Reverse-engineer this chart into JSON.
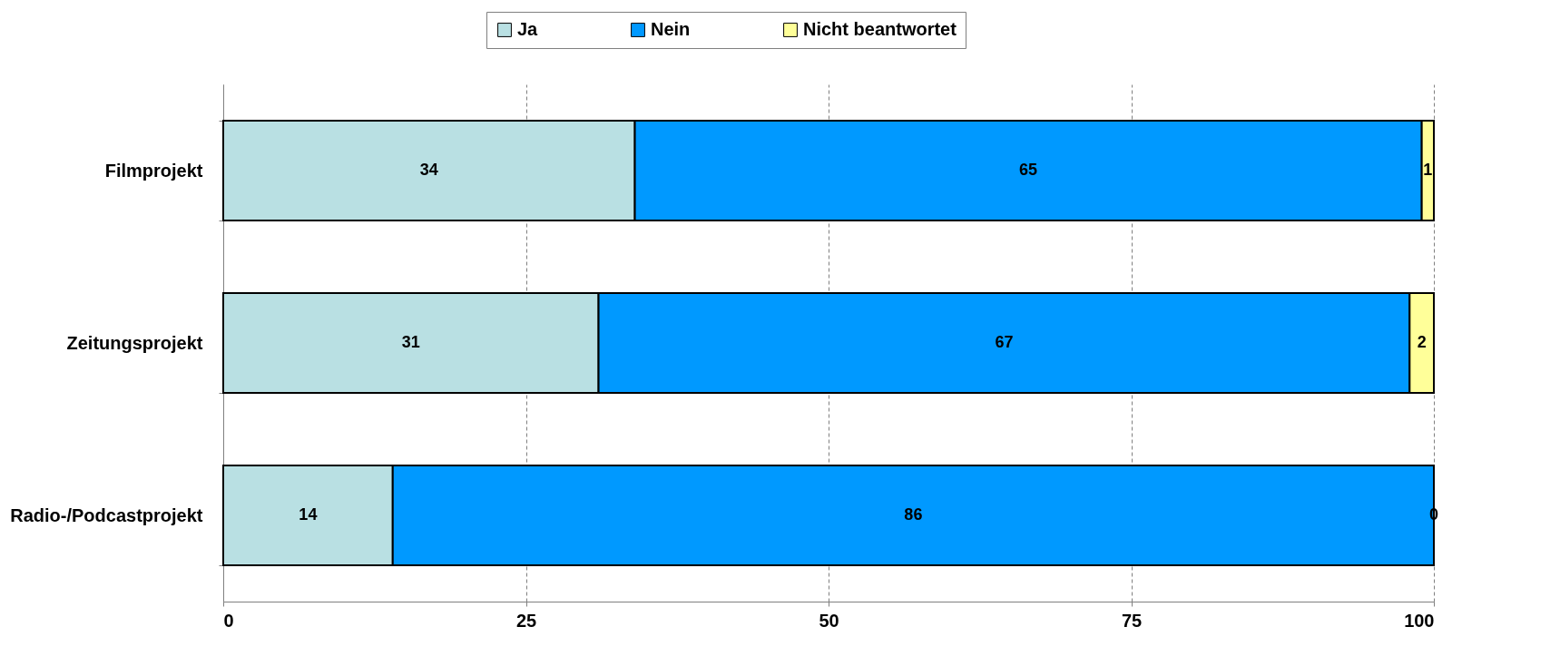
{
  "chart_data": {
    "type": "bar",
    "orientation": "horizontal",
    "stacked": true,
    "categories": [
      "Filmprojekt",
      "Zeitungsprojekt",
      "Radio-/Podcastprojekt"
    ],
    "series": [
      {
        "name": "Ja",
        "color": "#b9e0e3",
        "values": [
          34,
          31,
          14
        ]
      },
      {
        "name": "Nein",
        "color": "#0099ff",
        "values": [
          65,
          67,
          86
        ]
      },
      {
        "name": "Nicht beantwortet",
        "color": "#ffff99",
        "values": [
          1,
          2,
          0
        ]
      }
    ],
    "xlim": [
      0,
      100
    ],
    "xticks": [
      0,
      25,
      50,
      75,
      100
    ],
    "grid": "x",
    "legend": "top",
    "data_labels": true
  }
}
